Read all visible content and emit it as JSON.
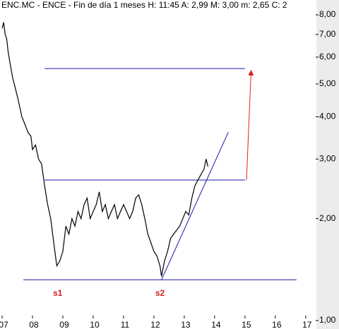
{
  "chart_data": {
    "type": "line",
    "log_y": true,
    "title": "ENC.MC - ENCE - Fin de día 1 meses H: 11:45 A: 2,99 M: 3,00 m: 2,65 C: 2",
    "xlim": [
      2006.93,
      2017.33
    ],
    "ylim": [
      1.0,
      8.85
    ],
    "xticks": [
      {
        "value": 2007,
        "label": "07"
      },
      {
        "value": 2008,
        "label": "08"
      },
      {
        "value": 2009,
        "label": "09"
      },
      {
        "value": 2010,
        "label": "10"
      },
      {
        "value": 2011,
        "label": "11"
      },
      {
        "value": 2012,
        "label": "12"
      },
      {
        "value": 2013,
        "label": "13"
      },
      {
        "value": 2014,
        "label": "14"
      },
      {
        "value": 2015,
        "label": "15"
      },
      {
        "value": 2016,
        "label": "16"
      },
      {
        "value": 2017,
        "label": "17"
      }
    ],
    "yticks": [
      {
        "value": 1,
        "label": "1,00"
      },
      {
        "value": 2,
        "label": "2,00"
      },
      {
        "value": 3,
        "label": "3,00"
      },
      {
        "value": 4,
        "label": "4,00"
      },
      {
        "value": 5,
        "label": "5,00"
      },
      {
        "value": 6,
        "label": "6,00"
      },
      {
        "value": 7,
        "label": "7,00"
      },
      {
        "value": 8,
        "label": "8,00"
      }
    ],
    "series": [
      {
        "color": "#000000",
        "x": [
          2007.0,
          2007.05,
          2007.1,
          2007.15,
          2007.2,
          2007.3,
          2007.35,
          2007.4,
          2007.5,
          2007.55,
          2007.65,
          2007.75,
          2007.85,
          2007.95,
          2008.0,
          2008.1,
          2008.2,
          2008.3,
          2008.4,
          2008.5,
          2008.6,
          2008.7,
          2008.8,
          2008.9,
          2009.0,
          2009.1,
          2009.2,
          2009.3,
          2009.4,
          2009.5,
          2009.6,
          2009.7,
          2009.8,
          2009.9,
          2010.0,
          2010.1,
          2010.2,
          2010.3,
          2010.4,
          2010.5,
          2010.6,
          2010.7,
          2010.8,
          2010.9,
          2011.0,
          2011.1,
          2011.2,
          2011.3,
          2011.4,
          2011.5,
          2011.6,
          2011.7,
          2011.8,
          2011.9,
          2012.0,
          2012.1,
          2012.2,
          2012.25,
          2012.35,
          2012.45,
          2012.55,
          2012.65,
          2012.75,
          2012.85,
          2012.95,
          2013.05,
          2013.15,
          2013.25,
          2013.35,
          2013.45,
          2013.55,
          2013.65,
          2013.72,
          2013.78
        ],
        "values": [
          7.3,
          7.6,
          7.0,
          6.8,
          6.2,
          5.5,
          5.2,
          5.0,
          4.6,
          4.4,
          4.0,
          3.8,
          3.6,
          3.5,
          3.2,
          3.3,
          3.0,
          2.9,
          2.5,
          2.2,
          2.0,
          1.7,
          1.45,
          1.5,
          1.6,
          1.9,
          1.8,
          2.0,
          1.9,
          2.1,
          2.0,
          2.2,
          2.3,
          2.0,
          2.1,
          2.2,
          2.4,
          2.1,
          2.2,
          2.0,
          2.1,
          2.2,
          2.0,
          2.1,
          2.2,
          2.1,
          2.0,
          2.1,
          2.3,
          2.35,
          2.2,
          2.0,
          1.8,
          1.7,
          1.6,
          1.55,
          1.45,
          1.35,
          1.5,
          1.6,
          1.75,
          1.8,
          1.85,
          1.9,
          2.0,
          2.1,
          2.05,
          2.3,
          2.5,
          2.6,
          2.7,
          2.8,
          3.0,
          2.85
        ]
      }
    ],
    "lines": [
      {
        "color": "#1a1aa6",
        "x": [
          2008.4,
          2015.0
        ],
        "y": [
          5.55,
          5.55
        ]
      },
      {
        "color": "#1a1aa6",
        "x": [
          2008.4,
          2015.0
        ],
        "y": [
          2.6,
          2.6
        ]
      },
      {
        "color": "#1a1aa6",
        "x": [
          2007.7,
          2016.7
        ],
        "y": [
          1.32,
          1.32
        ]
      },
      {
        "color": "#1a1aa6",
        "x": [
          2012.25,
          2014.45
        ],
        "y": [
          1.32,
          3.6
        ]
      },
      {
        "color": "#e02020",
        "x": [
          2015.05,
          2015.2
        ],
        "y": [
          2.6,
          5.4
        ],
        "arrow": true
      }
    ],
    "annotations": [
      {
        "text": "s1",
        "x": 2008.83,
        "y": 1.2,
        "color": "#cc2222"
      },
      {
        "text": "s2",
        "x": 2012.2,
        "y": 1.2,
        "color": "#cc2222"
      }
    ]
  }
}
